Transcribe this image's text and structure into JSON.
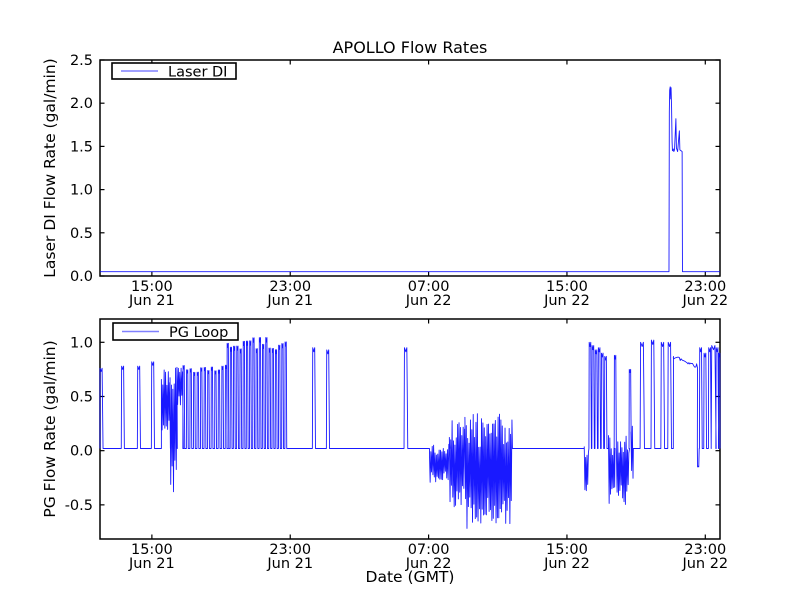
{
  "figure": {
    "title": "APOLLO Flow Rates",
    "xlabel": "Date (GMT)",
    "line_color": "#0000ff",
    "frame_color": "#000000",
    "background_color": "#ffffff"
  },
  "chart_data": [
    {
      "type": "line",
      "title": "APOLLO Flow Rates",
      "ylabel": "Laser DI Flow Rate (gal/min)",
      "legend": {
        "label": "Laser DI",
        "position": "upper left"
      },
      "grid": false,
      "xlim_hours_from_jun21_0000": [
        12.0,
        47.85
      ],
      "ylim": [
        0.0,
        2.5
      ],
      "yticks": [
        {
          "label": "0.0",
          "v": 0.0
        },
        {
          "label": "0.5",
          "v": 0.5
        },
        {
          "label": "1.0",
          "v": 1.0
        },
        {
          "label": "1.5",
          "v": 1.5
        },
        {
          "label": "2.0",
          "v": 2.0
        },
        {
          "label": "2.5",
          "v": 2.5
        }
      ],
      "xticks": [
        {
          "t": 15,
          "time": "15:00",
          "date": "Jun 21"
        },
        {
          "t": 23,
          "time": "23:00",
          "date": "Jun 21"
        },
        {
          "t": 31,
          "time": "07:00",
          "date": "Jun 22"
        },
        {
          "t": 39,
          "time": "15:00",
          "date": "Jun 22"
        },
        {
          "t": 47,
          "time": "23:00",
          "date": "Jun 22"
        }
      ],
      "series": {
        "name": "Laser DI",
        "baseline": 0.05,
        "features": [
          {
            "kind": "points",
            "pts": [
              [
                44.9,
                0.05
              ],
              [
                44.92,
                1.9
              ],
              [
                44.94,
                2.15
              ],
              [
                44.97,
                2.19
              ],
              [
                45.0,
                2.05
              ],
              [
                45.02,
                2.18
              ],
              [
                45.05,
                1.95
              ],
              [
                45.08,
                1.55
              ],
              [
                45.1,
                1.45
              ],
              [
                45.15,
                1.47
              ],
              [
                45.18,
                1.44
              ],
              [
                45.22,
                1.46
              ],
              [
                45.3,
                1.82
              ],
              [
                45.33,
                1.48
              ],
              [
                45.4,
                1.44
              ],
              [
                45.5,
                1.68
              ],
              [
                45.53,
                1.46
              ],
              [
                45.6,
                1.45
              ],
              [
                45.66,
                1.44
              ],
              [
                45.68,
                0.05
              ]
            ]
          }
        ]
      }
    },
    {
      "type": "line",
      "ylabel": "PG Flow Rate (gal/min)",
      "xlabel": "Date (GMT)",
      "legend": {
        "label": "PG Loop",
        "position": "upper left"
      },
      "grid": false,
      "xlim_hours_from_jun21_0000": [
        12.0,
        47.85
      ],
      "ylim": [
        -0.815,
        1.215
      ],
      "yticks": [
        {
          "label": "-0.5",
          "v": -0.5
        },
        {
          "label": "0.0",
          "v": 0.0
        },
        {
          "label": "0.5",
          "v": 0.5
        },
        {
          "label": "1.0",
          "v": 1.0
        }
      ],
      "xticks": [
        {
          "t": 15,
          "time": "15:00",
          "date": "Jun 21"
        },
        {
          "t": 23,
          "time": "23:00",
          "date": "Jun 21"
        },
        {
          "t": 31,
          "time": "07:00",
          "date": "Jun 22"
        },
        {
          "t": 39,
          "time": "15:00",
          "date": "Jun 22"
        },
        {
          "t": 47,
          "time": "23:00",
          "date": "Jun 22"
        }
      ],
      "series": {
        "name": "PG Loop",
        "baseline": 0.02,
        "features": [
          {
            "kind": "spike",
            "t": 12.08,
            "v": 0.76,
            "w": 0.12
          },
          {
            "kind": "spike",
            "t": 13.33,
            "v": 0.78,
            "w": 0.1
          },
          {
            "kind": "spike",
            "t": 14.26,
            "v": 0.78,
            "w": 0.1
          },
          {
            "kind": "spike",
            "t": 15.07,
            "v": 0.82,
            "w": 0.1
          },
          {
            "kind": "noise",
            "t0": 15.55,
            "t1": 16.05,
            "lo": 0.1,
            "hi": 0.78
          },
          {
            "kind": "noise",
            "t0": 16.05,
            "t1": 16.45,
            "lo": -0.38,
            "hi": 0.78
          },
          {
            "kind": "noise",
            "t0": 16.45,
            "t1": 16.8,
            "lo": 0.42,
            "hi": 0.78
          },
          {
            "kind": "spikes",
            "t0": 16.85,
            "t1": 19.3,
            "n": 13,
            "vmin": 0.72,
            "vmax": 0.8,
            "w": 0.06
          },
          {
            "kind": "spikes",
            "t0": 19.4,
            "t1": 22.75,
            "n": 19,
            "vmin": 0.93,
            "vmax": 1.05,
            "w": 0.06
          },
          {
            "kind": "spike",
            "t": 24.38,
            "v": 0.95,
            "w": 0.1
          },
          {
            "kind": "spike",
            "t": 25.19,
            "v": 0.93,
            "w": 0.1
          },
          {
            "kind": "spike",
            "t": 29.7,
            "v": 0.95,
            "w": 0.12
          },
          {
            "kind": "noise",
            "t0": 31.05,
            "t1": 32.2,
            "lo": -0.3,
            "hi": 0.07
          },
          {
            "kind": "noise",
            "t0": 32.2,
            "t1": 33.1,
            "lo": -0.55,
            "hi": 0.3
          },
          {
            "kind": "noise",
            "t0": 33.1,
            "t1": 35.83,
            "lo": -0.72,
            "hi": 0.35
          },
          {
            "kind": "noise",
            "t0": 40.0,
            "t1": 40.25,
            "lo": -0.45,
            "hi": 0.1
          },
          {
            "kind": "spike",
            "t": 40.35,
            "v": 1.0,
            "w": 0.08
          },
          {
            "kind": "spike",
            "t": 40.52,
            "v": 0.97,
            "w": 0.08
          },
          {
            "kind": "spike",
            "t": 40.7,
            "v": 0.93,
            "w": 0.08
          },
          {
            "kind": "spike",
            "t": 40.88,
            "v": 0.95,
            "w": 0.08
          },
          {
            "kind": "spike",
            "t": 41.06,
            "v": 0.9,
            "w": 0.08
          },
          {
            "kind": "spike",
            "t": 41.25,
            "v": 0.87,
            "w": 0.08
          },
          {
            "kind": "noise",
            "t0": 41.4,
            "t1": 41.76,
            "lo": -0.5,
            "hi": 0.15
          },
          {
            "kind": "spike",
            "t": 41.8,
            "v": 0.88,
            "w": 0.07
          },
          {
            "kind": "noise",
            "t0": 41.86,
            "t1": 42.6,
            "lo": -0.5,
            "hi": 0.15
          },
          {
            "kind": "spike",
            "t": 42.66,
            "v": 0.75,
            "w": 0.07
          },
          {
            "kind": "noise",
            "t0": 42.7,
            "t1": 42.82,
            "lo": -0.3,
            "hi": 0.25
          },
          {
            "kind": "spike",
            "t": 43.37,
            "v": 1.0,
            "w": 0.14
          },
          {
            "kind": "spike",
            "t": 43.98,
            "v": 1.02,
            "w": 0.12
          },
          {
            "kind": "spike",
            "t": 44.55,
            "v": 1.0,
            "w": 0.12
          },
          {
            "kind": "spike",
            "t": 44.95,
            "v": 1.0,
            "w": 0.12
          },
          {
            "kind": "band",
            "t0": 45.15,
            "t1": 46.55,
            "v0": 0.87,
            "v1": 0.78,
            "jitter": 0.02
          },
          {
            "kind": "spike",
            "t": 46.6,
            "v": -0.15,
            "w": 0.06
          },
          {
            "kind": "spike",
            "t": 46.75,
            "v": 0.95,
            "w": 0.09
          },
          {
            "kind": "spike",
            "t": 47.0,
            "v": 0.9,
            "w": 0.09
          },
          {
            "kind": "spike",
            "t": 47.27,
            "v": 0.95,
            "w": 0.09
          },
          {
            "kind": "spike",
            "t": 47.5,
            "v": 0.97,
            "w": 0.16
          },
          {
            "kind": "spike",
            "t": 47.7,
            "v": 0.95,
            "w": 0.09
          },
          {
            "kind": "spike",
            "t": 47.82,
            "v": 0.9,
            "w": 0.06
          }
        ]
      }
    }
  ]
}
